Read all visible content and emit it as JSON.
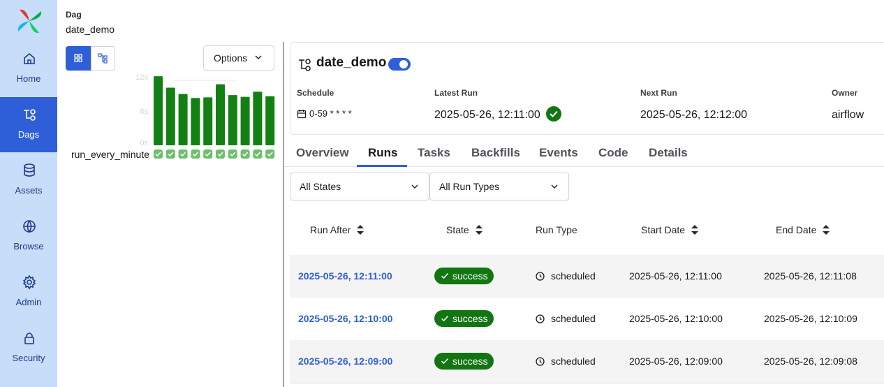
{
  "sidebar": {
    "items": [
      "Home",
      "Dags",
      "Assets",
      "Browse",
      "Admin",
      "Security"
    ],
    "active": 1
  },
  "header": {
    "label": "Dag",
    "title": "date_demo"
  },
  "grid_panel": {
    "options_button": "Options",
    "task_name": "run_every_minute",
    "duration_chart": {
      "type": "bar",
      "color": "#138013",
      "ylim": [
        0,
        12
      ],
      "yticks": [
        {
          "value": 0,
          "label": "0s"
        },
        {
          "value": 6,
          "label": "6s"
        },
        {
          "value": 12,
          "label": "12s"
        }
      ],
      "values": [
        12.1,
        10.1,
        9.0,
        8.3,
        8.4,
        10.7,
        8.8,
        8.5,
        9.4,
        8.6
      ]
    }
  },
  "dag_card": {
    "title": "date_demo",
    "fields": [
      {
        "label": "Schedule",
        "value": "0-59 * * * *"
      },
      {
        "label": "Latest Run",
        "value": "2025-05-26, 12:11:00"
      },
      {
        "label": "Next Run",
        "value": "2025-05-26, 12:12:00"
      },
      {
        "label": "Owner",
        "value": "airflow"
      }
    ]
  },
  "tabs": [
    "Overview",
    "Runs",
    "Tasks",
    "Backfills",
    "Events",
    "Code",
    "Details"
  ],
  "active_tab": 1,
  "filters": [
    "All States",
    "All Run Types"
  ],
  "table": {
    "columns": [
      "Run After",
      "State",
      "Run Type",
      "Start Date",
      "End Date"
    ],
    "sortable": [
      true,
      true,
      false,
      true,
      true
    ],
    "rows": [
      [
        "2025-05-26, 12:11:00",
        "success",
        "scheduled",
        "2025-05-26, 12:11:00",
        "2025-05-26, 12:11:08"
      ],
      [
        "2025-05-26, 12:10:00",
        "success",
        "scheduled",
        "2025-05-26, 12:10:00",
        "2025-05-26, 12:10:09"
      ],
      [
        "2025-05-26, 12:09:00",
        "success",
        "scheduled",
        "2025-05-26, 12:09:00",
        "2025-05-26, 12:09:08"
      ]
    ]
  }
}
